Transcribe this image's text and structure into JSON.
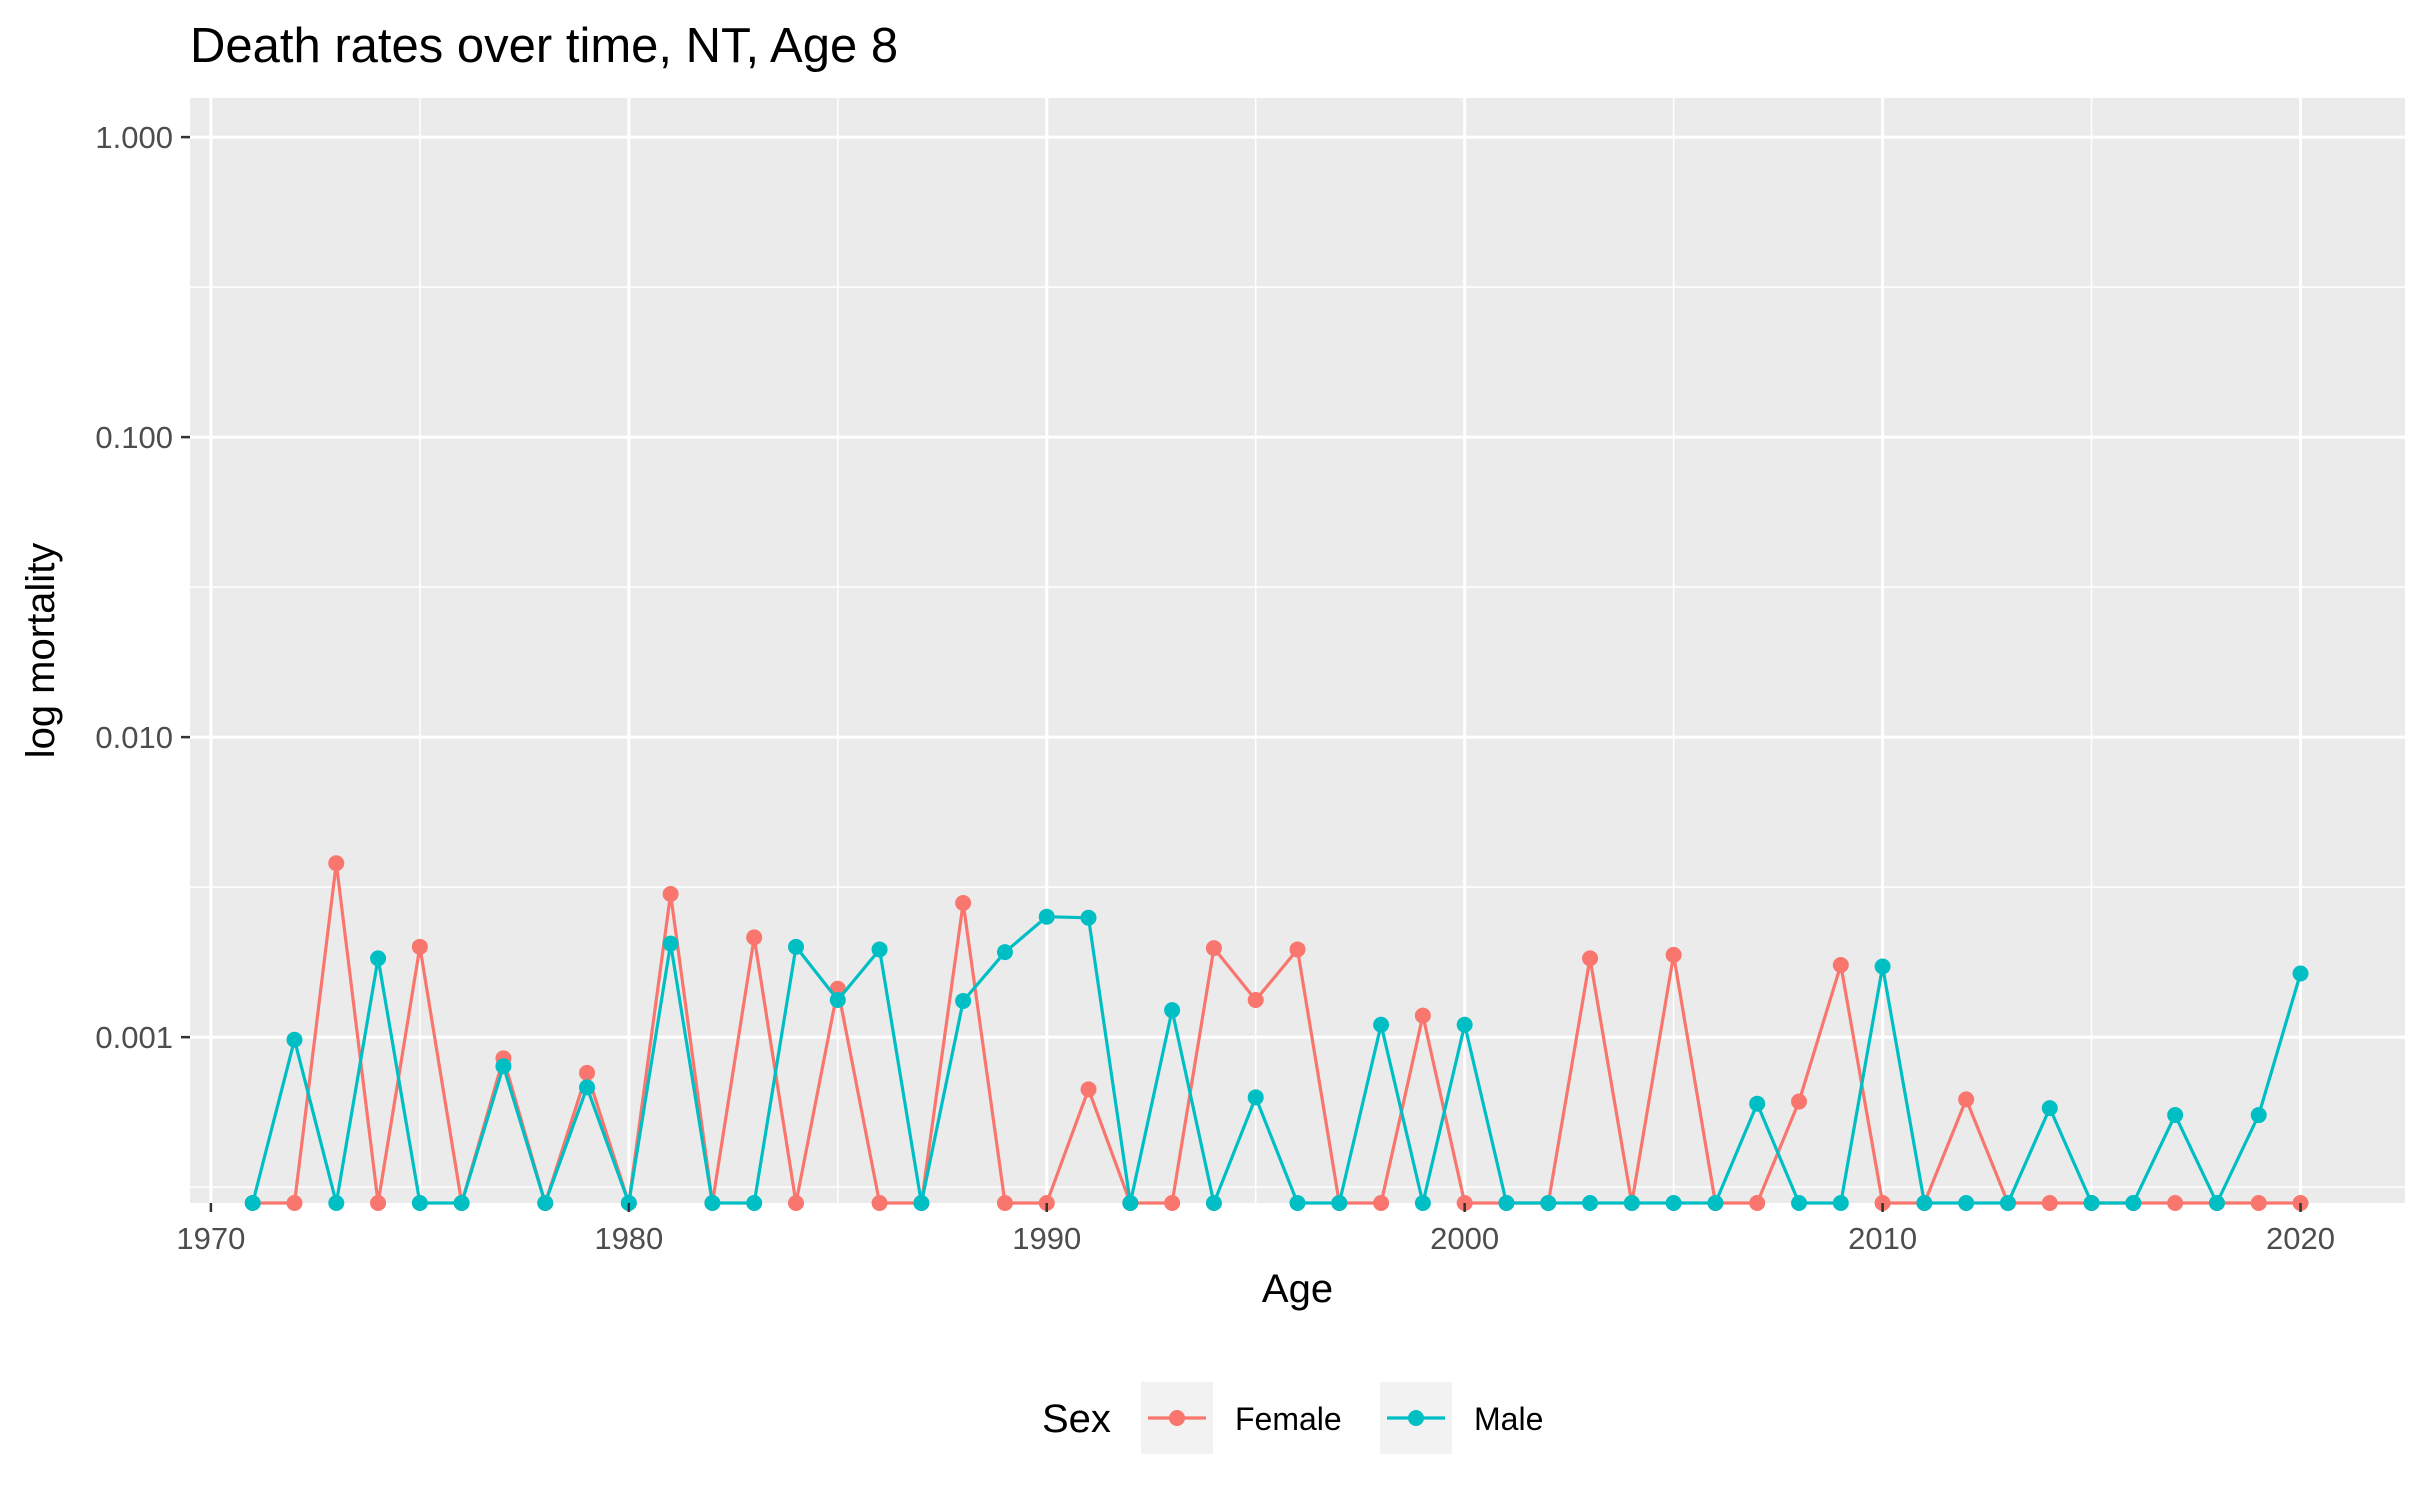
{
  "chart_data": {
    "type": "line",
    "title": "Death rates over time, NT, Age 8",
    "xlabel": "Age",
    "ylabel": "log mortality",
    "x_scale": "linear",
    "y_scale": "log10",
    "xlim": [
      1969.5,
      2022.5
    ],
    "ylim": [
      0.00028,
      1.35
    ],
    "x_ticks": [
      1970,
      1980,
      1990,
      2000,
      2010,
      2020
    ],
    "x_tick_labels": [
      "1970",
      "1980",
      "1990",
      "2000",
      "2010",
      "2020"
    ],
    "y_ticks": [
      0.001,
      0.01,
      0.1,
      1
    ],
    "y_tick_labels": [
      "0.001",
      "0.010",
      "0.100",
      "1.000"
    ],
    "grid": true,
    "legend_title": "Sex",
    "legend_position": "bottom",
    "x": [
      1971,
      1972,
      1973,
      1974,
      1975,
      1976,
      1977,
      1978,
      1979,
      1980,
      1981,
      1982,
      1983,
      1984,
      1985,
      1986,
      1987,
      1988,
      1989,
      1990,
      1991,
      1992,
      1993,
      1994,
      1995,
      1996,
      1997,
      1998,
      1999,
      2000,
      2001,
      2002,
      2003,
      2004,
      2005,
      2006,
      2007,
      2008,
      2009,
      2010,
      2011,
      2012,
      2013,
      2014,
      2015,
      2016,
      2017,
      2018,
      2019,
      2020
    ],
    "series": [
      {
        "name": "Female",
        "color": "#F8766D",
        "values": [
          0.00028,
          0.00028,
          0.0038,
          0.00028,
          0.002,
          0.00028,
          0.00085,
          0.00028,
          0.00076,
          0.00028,
          0.003,
          0.00028,
          0.00215,
          0.00028,
          0.00145,
          0.00028,
          0.00028,
          0.0028,
          0.00028,
          0.00028,
          0.00067,
          0.00028,
          0.00028,
          0.00198,
          0.00133,
          0.00196,
          0.00028,
          0.00028,
          0.00118,
          0.00028,
          0.00028,
          0.00028,
          0.00183,
          0.00028,
          0.00188,
          0.00028,
          0.00028,
          0.00061,
          0.00174,
          0.00028,
          0.00028,
          0.00062,
          0.00028,
          0.00028,
          0.00028,
          0.00028,
          0.00028,
          0.00028,
          0.00028,
          0.00028
        ]
      },
      {
        "name": "Male",
        "color": "#00BFC4",
        "values": [
          0.00028,
          0.00098,
          0.00028,
          0.00183,
          0.00028,
          0.00028,
          0.0008,
          0.00028,
          0.00068,
          0.00028,
          0.00205,
          0.00028,
          0.00028,
          0.002,
          0.00133,
          0.00196,
          0.00028,
          0.00132,
          0.00192,
          0.00252,
          0.0025,
          0.00028,
          0.00123,
          0.00028,
          0.00063,
          0.00028,
          0.00028,
          0.0011,
          0.00028,
          0.0011,
          0.00028,
          0.00028,
          0.00028,
          0.00028,
          0.00028,
          0.00028,
          0.0006,
          0.00028,
          0.00028,
          0.00172,
          0.00028,
          0.00028,
          0.00028,
          0.00058,
          0.00028,
          0.00028,
          0.00055,
          0.00028,
          0.00055,
          0.00163
        ]
      }
    ]
  }
}
